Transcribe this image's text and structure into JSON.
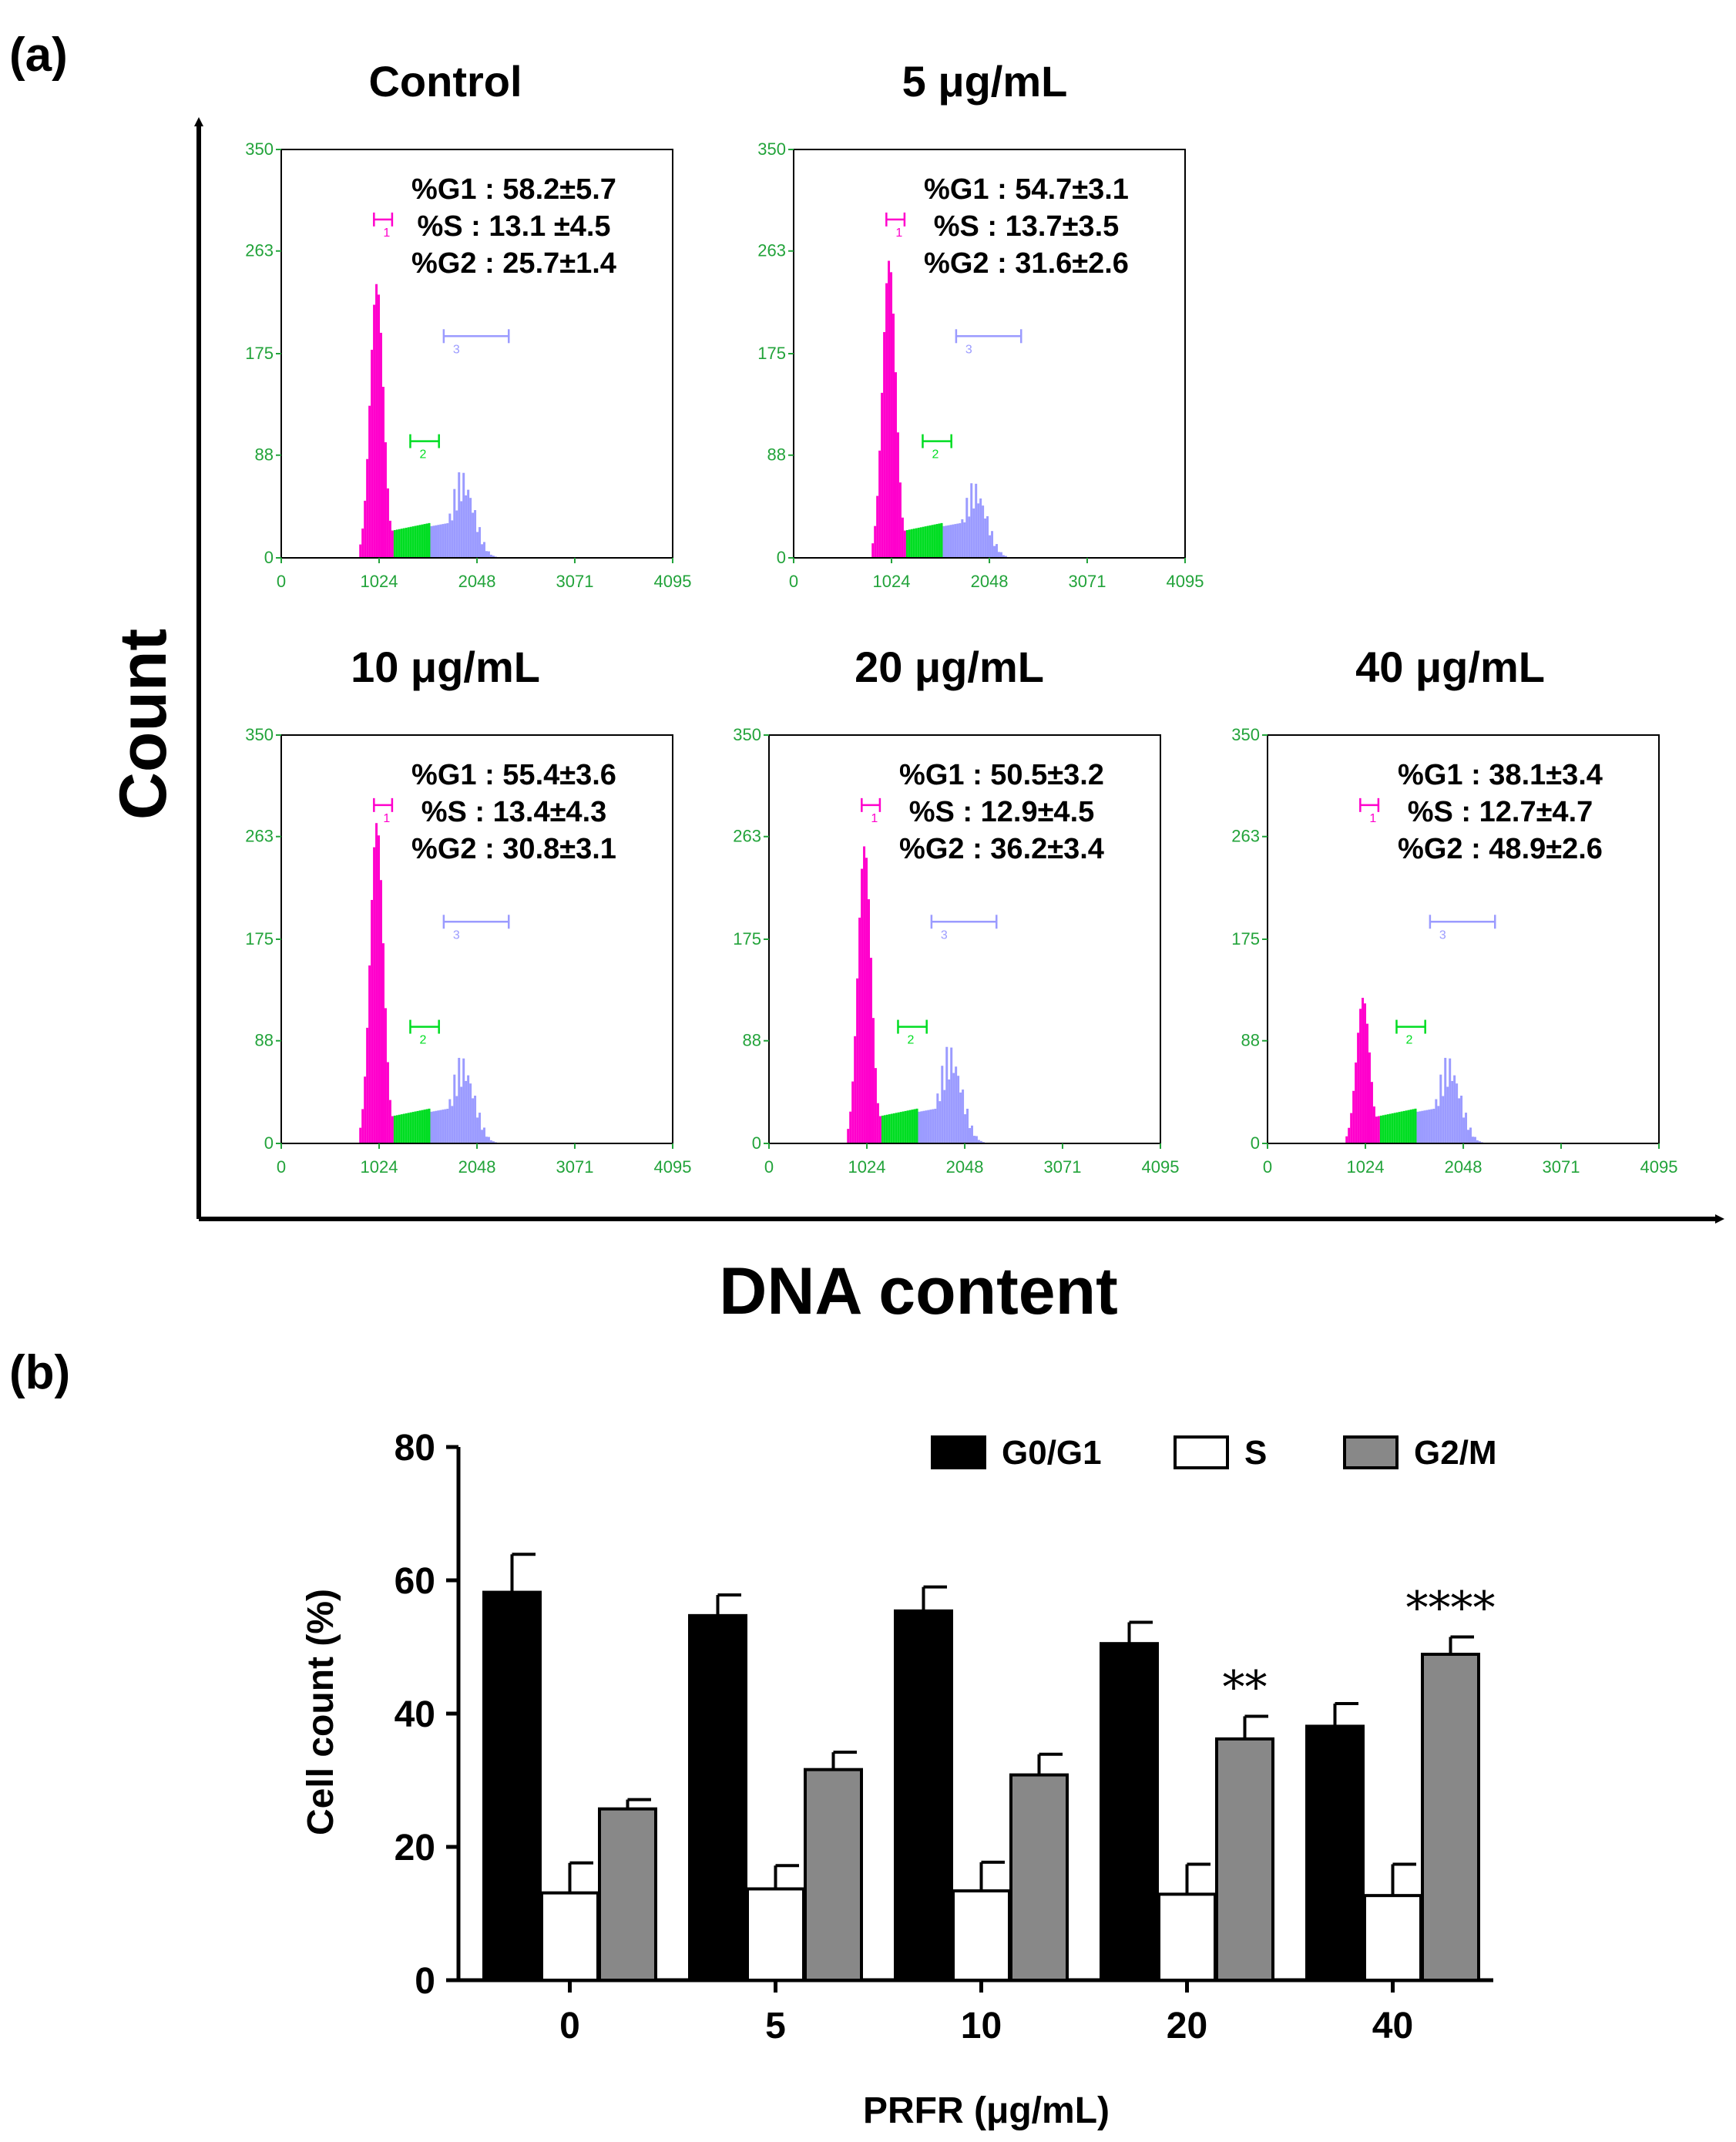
{
  "chart_data": [
    {
      "type": "histogram",
      "panel_label": "(a)",
      "xlabel": "DNA content",
      "ylabel": "Count",
      "x_ticks": [
        "0",
        "1024",
        "2048",
        "3071",
        "4095"
      ],
      "y_ticks": [
        "0",
        "88",
        "175",
        "263",
        "350"
      ],
      "xlim": [
        0,
        4095
      ],
      "ylim": [
        0,
        350
      ],
      "phase_colors": {
        "G1": "#ff00cc",
        "S": "#00dd22",
        "G2": "#9b9bff"
      },
      "gate_labels": [
        "1",
        "2",
        "3"
      ],
      "panels": [
        {
          "title": "Control",
          "stats": [
            "%G1 : 58.2±5.7",
            "%S : 13.1 ±4.5",
            "%G2 : 25.7±1.4"
          ],
          "g1_peak": 235,
          "g2_peak": 78
        },
        {
          "title": "5 μg/mL",
          "stats": [
            "%G1 : 54.7±3.1",
            "%S : 13.7±3.5",
            "%G2 : 31.6±2.6"
          ],
          "g1_peak": 255,
          "g2_peak": 68
        },
        {
          "title": "10 μg/mL",
          "stats": [
            "%G1 : 55.4±3.6",
            "%S : 13.4±4.3",
            "%G2 : 30.8±3.1"
          ],
          "g1_peak": 275,
          "g2_peak": 78
        },
        {
          "title": "20 μg/mL",
          "stats": [
            "%G1 : 50.5±3.2",
            "%S : 12.9±4.5",
            "%G2 : 36.2±3.4"
          ],
          "g1_peak": 255,
          "g2_peak": 88
        },
        {
          "title": "40 μg/mL",
          "stats": [
            "%G1 : 38.1±3.4",
            "%S : 12.7±4.7",
            "%G2 : 48.9±2.6"
          ],
          "g1_peak": 125,
          "g2_peak": 78
        }
      ]
    },
    {
      "type": "bar",
      "panel_label": "(b)",
      "xlabel": "PRFR (μg/mL)",
      "ylabel": "Cell count (%)",
      "categories": [
        "0",
        "5",
        "10",
        "20",
        "40"
      ],
      "y_ticks": [
        "0",
        "20",
        "40",
        "60",
        "80"
      ],
      "ylim": [
        0,
        80
      ],
      "series": [
        {
          "name": "G0/G1",
          "color": "#000000",
          "values": [
            58.2,
            54.7,
            55.4,
            50.5,
            38.1
          ],
          "errors": [
            5.7,
            3.1,
            3.6,
            3.2,
            3.4
          ]
        },
        {
          "name": "S",
          "color": "#ffffff",
          "values": [
            13.1,
            13.7,
            13.4,
            12.9,
            12.7
          ],
          "errors": [
            4.5,
            3.5,
            4.3,
            4.5,
            4.7
          ]
        },
        {
          "name": "G2/M",
          "color": "#888888",
          "values": [
            25.7,
            31.6,
            30.8,
            36.2,
            48.9
          ],
          "errors": [
            1.4,
            2.6,
            3.1,
            3.4,
            2.6
          ]
        }
      ],
      "annotations": [
        {
          "category": "20",
          "series": "G2/M",
          "text": "**"
        },
        {
          "category": "40",
          "series": "G2/M",
          "text": "****"
        }
      ]
    }
  ]
}
